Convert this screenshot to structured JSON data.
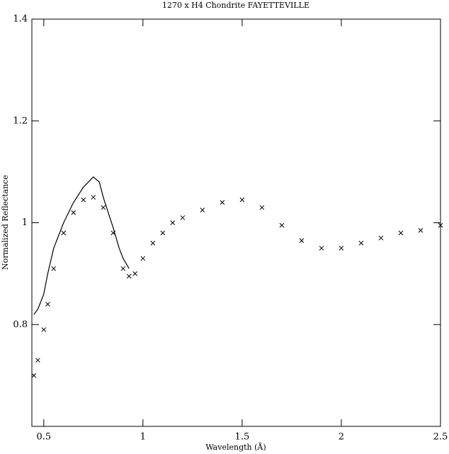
{
  "chart_data": {
    "type": "line",
    "title": "1270 x H4 Chondrite FAYETTEVILLE",
    "x_label": "Wavelength (Å)",
    "y_label": "Normalized Reflectance",
    "xlim": [
      0.44,
      2.5
    ],
    "xticks": [
      0.5,
      1,
      1.5,
      2,
      2.5
    ],
    "ylim": [
      0.6,
      1.4
    ],
    "yticks": [
      0.8,
      1,
      1.2,
      1.4
    ],
    "grid": false,
    "series": [
      {
        "color": "#000000",
        "marker": "none",
        "x": [
          0.45,
          0.47,
          0.5,
          0.52,
          0.55,
          0.6,
          0.65,
          0.7,
          0.75,
          0.78,
          0.8,
          0.85,
          0.88,
          0.9,
          0.93
        ],
        "values": [
          0.82,
          0.83,
          0.86,
          0.9,
          0.95,
          1.0,
          1.04,
          1.07,
          1.09,
          1.08,
          1.05,
          0.99,
          0.95,
          0.93,
          0.91
        ]
      },
      {
        "color": "#000000",
        "marker": "x",
        "x": [
          0.45,
          0.47,
          0.5,
          0.52,
          0.55,
          0.6,
          0.65,
          0.7,
          0.75,
          0.8,
          0.85,
          0.9,
          0.93,
          0.96,
          1.0,
          1.05,
          1.1,
          1.15,
          1.2,
          1.3,
          1.4,
          1.5,
          1.6,
          1.7,
          1.8,
          1.9,
          2.0,
          2.1,
          2.2,
          2.3,
          2.4,
          2.5
        ],
        "values": [
          0.7,
          0.73,
          0.79,
          0.84,
          0.91,
          0.98,
          1.02,
          1.045,
          1.05,
          1.03,
          0.98,
          0.91,
          0.895,
          0.9,
          0.93,
          0.96,
          0.98,
          1.0,
          1.01,
          1.025,
          1.04,
          1.045,
          1.03,
          0.995,
          0.965,
          0.95,
          0.95,
          0.96,
          0.97,
          0.98,
          0.985,
          0.995
        ]
      }
    ]
  }
}
